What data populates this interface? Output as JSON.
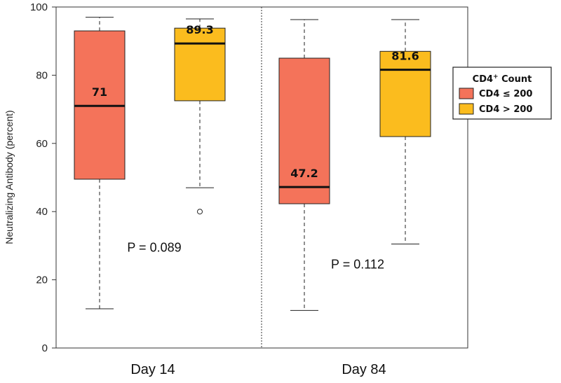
{
  "chart_data": {
    "type": "box",
    "ylabel": "Neutralizing Antibody (percent)",
    "ylim": [
      0,
      100
    ],
    "yticks": [
      "0",
      "20",
      "40",
      "60",
      "80",
      "100"
    ],
    "groups": [
      "Day 14",
      "Day 84"
    ],
    "legend": {
      "title_main": "CD4",
      "title_sup": "+",
      "title_rest": " Count",
      "placement": "right",
      "entries": [
        {
          "label": "CD4 ≤ 200",
          "color": "#F4735A"
        },
        {
          "label": "CD4 > 200",
          "color": "#FBBC1E"
        }
      ]
    },
    "series": [
      {
        "group": "Day 14",
        "legend_index": 0,
        "color": "#F4735A",
        "whisker_low": 11.5,
        "q1": 49.5,
        "median": 71,
        "q3": 93,
        "whisker_high": 97,
        "outliers": [],
        "median_label": "71"
      },
      {
        "group": "Day 14",
        "legend_index": 1,
        "color": "#FBBC1E",
        "whisker_low": 47,
        "q1": 72.5,
        "median": 89.3,
        "q3": 93.8,
        "whisker_high": 96.5,
        "outliers": [
          40
        ],
        "median_label": "89.3"
      },
      {
        "group": "Day 84",
        "legend_index": 0,
        "color": "#F4735A",
        "whisker_low": 11,
        "q1": 42.3,
        "median": 47.2,
        "q3": 85,
        "whisker_high": 96.3,
        "outliers": [],
        "median_label": "47.2"
      },
      {
        "group": "Day 84",
        "legend_index": 1,
        "color": "#FBBC1E",
        "whisker_low": 30.5,
        "q1": 62,
        "median": 81.6,
        "q3": 87,
        "whisker_high": 96.3,
        "outliers": [],
        "median_label": "81.6"
      }
    ],
    "annotations": [
      {
        "group": "Day 14",
        "text": "P = 0.089",
        "y": 29.5
      },
      {
        "group": "Day 84",
        "text": "P = 0.112",
        "y": 24.5
      }
    ]
  }
}
